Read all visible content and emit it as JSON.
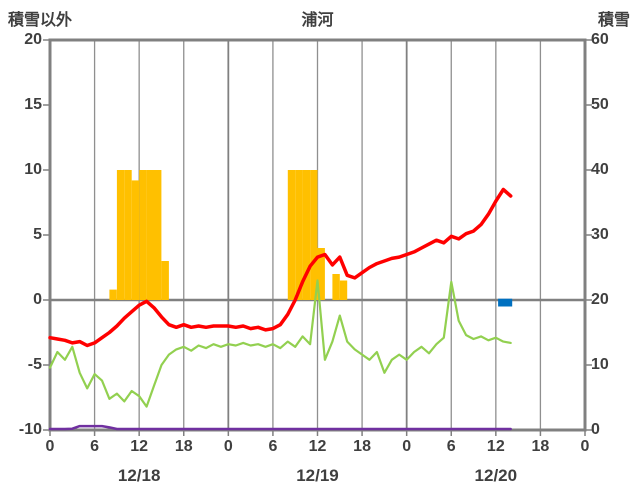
{
  "chart_data": {
    "type": "composite",
    "title": "浦河",
    "left_axis": {
      "label": "積雪以外",
      "min": -10,
      "max": 20,
      "ticks": [
        20,
        15,
        10,
        5,
        0,
        -5,
        -10
      ]
    },
    "right_axis": {
      "label": "積雪",
      "min": 0,
      "max": 60,
      "ticks": [
        60,
        50,
        40,
        30,
        20,
        10,
        0
      ]
    },
    "x_axis": {
      "days": [
        "12/18",
        "12/19",
        "12/20"
      ],
      "hour_ticks": [
        0,
        6,
        12,
        18
      ],
      "end_tick_label": "0",
      "hours_total": 72
    },
    "grid": {
      "vertical_every_hours": 6,
      "horizontal_zero_line": true,
      "border_color": "#808080",
      "minor_line_color": "#8f8f8f"
    },
    "series": {
      "sunshine": {
        "name": "sunshine-bars",
        "type": "bar",
        "axis": "left",
        "color": "#FFC000",
        "points": [
          [
            8,
            0.8
          ],
          [
            9,
            10
          ],
          [
            10,
            10
          ],
          [
            11,
            9.2
          ],
          [
            12,
            10
          ],
          [
            13,
            10
          ],
          [
            14,
            10
          ],
          [
            15,
            3
          ],
          [
            32,
            10
          ],
          [
            33,
            10
          ],
          [
            34,
            10
          ],
          [
            35,
            10
          ],
          [
            36,
            4
          ],
          [
            38,
            2
          ],
          [
            39,
            1.5
          ]
        ]
      },
      "temperature": {
        "name": "temperature-line",
        "type": "line",
        "axis": "left",
        "color": "#FF0000",
        "points": [
          [
            0,
            -2.9
          ],
          [
            1,
            -3.0
          ],
          [
            2,
            -3.1
          ],
          [
            3,
            -3.3
          ],
          [
            4,
            -3.2
          ],
          [
            5,
            -3.5
          ],
          [
            6,
            -3.3
          ],
          [
            7,
            -2.9
          ],
          [
            8,
            -2.5
          ],
          [
            9,
            -2.0
          ],
          [
            10,
            -1.4
          ],
          [
            11,
            -0.9
          ],
          [
            12,
            -0.4
          ],
          [
            13,
            -0.1
          ],
          [
            14,
            -0.6
          ],
          [
            15,
            -1.3
          ],
          [
            16,
            -1.9
          ],
          [
            17,
            -2.1
          ],
          [
            18,
            -1.9
          ],
          [
            19,
            -2.1
          ],
          [
            20,
            -2.0
          ],
          [
            21,
            -2.1
          ],
          [
            22,
            -2.0
          ],
          [
            23,
            -2.0
          ],
          [
            24,
            -2.0
          ],
          [
            25,
            -2.1
          ],
          [
            26,
            -2.0
          ],
          [
            27,
            -2.2
          ],
          [
            28,
            -2.1
          ],
          [
            29,
            -2.3
          ],
          [
            30,
            -2.2
          ],
          [
            31,
            -1.9
          ],
          [
            32,
            -1.1
          ],
          [
            33,
            0.0
          ],
          [
            34,
            1.4
          ],
          [
            35,
            2.6
          ],
          [
            36,
            3.3
          ],
          [
            37,
            3.5
          ],
          [
            38,
            2.7
          ],
          [
            39,
            3.3
          ],
          [
            40,
            1.9
          ],
          [
            41,
            1.7
          ],
          [
            42,
            2.1
          ],
          [
            43,
            2.5
          ],
          [
            44,
            2.8
          ],
          [
            45,
            3.0
          ],
          [
            46,
            3.2
          ],
          [
            47,
            3.3
          ],
          [
            48,
            3.5
          ],
          [
            49,
            3.7
          ],
          [
            50,
            4.0
          ],
          [
            51,
            4.3
          ],
          [
            52,
            4.6
          ],
          [
            53,
            4.4
          ],
          [
            54,
            4.9
          ],
          [
            55,
            4.7
          ],
          [
            56,
            5.1
          ],
          [
            57,
            5.3
          ],
          [
            58,
            5.8
          ],
          [
            59,
            6.6
          ],
          [
            60,
            7.6
          ],
          [
            61,
            8.5
          ],
          [
            62,
            8.0
          ]
        ]
      },
      "wind": {
        "name": "wind-line",
        "type": "line",
        "axis": "left",
        "color": "#92D050",
        "points": [
          [
            0,
            -5.2
          ],
          [
            1,
            -4.0
          ],
          [
            2,
            -4.6
          ],
          [
            3,
            -3.6
          ],
          [
            4,
            -5.6
          ],
          [
            5,
            -6.8
          ],
          [
            6,
            -5.7
          ],
          [
            7,
            -6.2
          ],
          [
            8,
            -7.6
          ],
          [
            9,
            -7.2
          ],
          [
            10,
            -7.8
          ],
          [
            11,
            -7.0
          ],
          [
            12,
            -7.4
          ],
          [
            13,
            -8.2
          ],
          [
            14,
            -6.6
          ],
          [
            15,
            -5.0
          ],
          [
            16,
            -4.2
          ],
          [
            17,
            -3.8
          ],
          [
            18,
            -3.6
          ],
          [
            19,
            -3.9
          ],
          [
            20,
            -3.5
          ],
          [
            21,
            -3.7
          ],
          [
            22,
            -3.4
          ],
          [
            23,
            -3.6
          ],
          [
            24,
            -3.4
          ],
          [
            25,
            -3.5
          ],
          [
            26,
            -3.3
          ],
          [
            27,
            -3.5
          ],
          [
            28,
            -3.4
          ],
          [
            29,
            -3.6
          ],
          [
            30,
            -3.4
          ],
          [
            31,
            -3.7
          ],
          [
            32,
            -3.2
          ],
          [
            33,
            -3.6
          ],
          [
            34,
            -2.8
          ],
          [
            35,
            -3.4
          ],
          [
            36,
            1.5
          ],
          [
            37,
            -4.6
          ],
          [
            38,
            -3.2
          ],
          [
            39,
            -1.2
          ],
          [
            40,
            -3.2
          ],
          [
            41,
            -3.8
          ],
          [
            42,
            -4.2
          ],
          [
            43,
            -4.6
          ],
          [
            44,
            -4.0
          ],
          [
            45,
            -5.6
          ],
          [
            46,
            -4.6
          ],
          [
            47,
            -4.2
          ],
          [
            48,
            -4.6
          ],
          [
            49,
            -4.0
          ],
          [
            50,
            -3.6
          ],
          [
            51,
            -4.1
          ],
          [
            52,
            -3.4
          ],
          [
            53,
            -2.9
          ],
          [
            54,
            1.4
          ],
          [
            55,
            -1.6
          ],
          [
            56,
            -2.7
          ],
          [
            57,
            -3.0
          ],
          [
            58,
            -2.8
          ],
          [
            59,
            -3.1
          ],
          [
            60,
            -2.9
          ],
          [
            61,
            -3.2
          ],
          [
            62,
            -3.3
          ]
        ]
      },
      "precipitation": {
        "name": "precipitation-line",
        "type": "line",
        "axis": "left",
        "color": "#7030A0",
        "points": [
          [
            0,
            -10
          ],
          [
            1,
            -10
          ],
          [
            2,
            -10
          ],
          [
            3,
            -9.9
          ],
          [
            4,
            -9.7
          ],
          [
            5,
            -9.7
          ],
          [
            6,
            -9.7
          ],
          [
            7,
            -9.7
          ],
          [
            8,
            -9.8
          ],
          [
            9,
            -10
          ],
          [
            20,
            -10
          ],
          [
            30,
            -10
          ],
          [
            40,
            -10
          ],
          [
            50,
            -10
          ],
          [
            62,
            -10
          ]
        ]
      },
      "snow_depth": {
        "name": "snow-depth-bar",
        "type": "bar",
        "axis": "right",
        "color": "#0070C0",
        "bar": {
          "h_start": 60.3,
          "h_end": 62.2,
          "top_cm": 20.2,
          "bottom_cm": 19.0
        }
      }
    }
  }
}
